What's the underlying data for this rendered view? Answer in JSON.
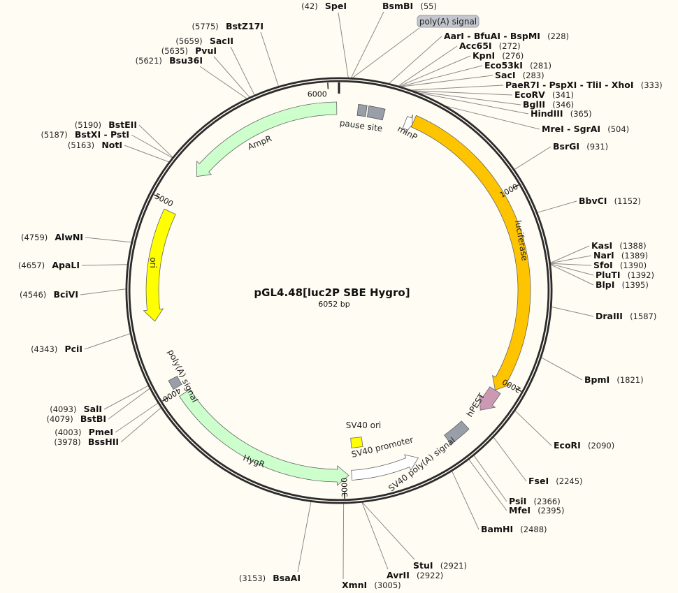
{
  "map": {
    "title": "pGL4.48[luc2P SBE Hygro]",
    "length_label": "6052 bp",
    "length_bp": 6052,
    "ticks": [
      {
        "pos": 1000,
        "label": "1000"
      },
      {
        "pos": 2000,
        "label": "2000"
      },
      {
        "pos": 3000,
        "label": "3000"
      },
      {
        "pos": 4000,
        "label": "4000"
      },
      {
        "pos": 5000,
        "label": "5000"
      },
      {
        "pos": 6000,
        "label": "6000"
      }
    ],
    "colors": {
      "background": "#fffcf3",
      "backbone": "#2b2b2b",
      "luciferase": "#ffc400",
      "ampr": "#ccffcc",
      "hygr": "#ccffcc",
      "ori": "#ffff00",
      "hpest": "#cc99b2",
      "gray_feature": "#999fa8",
      "promoter": "#ffffff"
    }
  },
  "features": [
    {
      "name": "luciferase",
      "start": 400,
      "end": 2060,
      "direction": "forward",
      "color": "#ffc400"
    },
    {
      "name": "hPEST",
      "start": 2060,
      "end": 2190,
      "direction": "forward",
      "color": "#cc99b2"
    },
    {
      "name": "SV40 poly(A) signal",
      "start": 2300,
      "end": 2420,
      "direction": "none",
      "color": "#999fa8"
    },
    {
      "name": "SV40 promoter",
      "start": 2600,
      "end": 2960,
      "direction": "reverse",
      "color": "#ffffff"
    },
    {
      "name": "SV40 ori",
      "start": 2880,
      "end": 2950,
      "direction": "none",
      "color": "#ffff00"
    },
    {
      "name": "HygR",
      "start": 2975,
      "end": 3975,
      "direction": "reverse",
      "color": "#ccffcc"
    },
    {
      "name": "poly(A) signal",
      "start": 4020,
      "end": 4070,
      "direction": "none",
      "color": "#999fa8"
    },
    {
      "name": "ori",
      "start": 4380,
      "end": 4960,
      "direction": "reverse",
      "color": "#ffff00"
    },
    {
      "name": "AmpR",
      "start": 5190,
      "end": 6040,
      "direction": "reverse",
      "color": "#ccffcc"
    },
    {
      "name": "pause site",
      "start": 100,
      "end": 250,
      "direction": "none",
      "color": "#999fa8"
    },
    {
      "name": "minP",
      "start": 360,
      "end": 400,
      "direction": "forward",
      "color": "#ffffff"
    },
    {
      "name": "poly(A) signal",
      "start": 60,
      "end": 70,
      "direction": "label",
      "color": "#999fa8"
    }
  ],
  "sites": [
    {
      "name": "SpeI",
      "pos": 42
    },
    {
      "name": "BsmBI",
      "pos": 55
    },
    {
      "name": "AarI - BfuAI - BspMI",
      "pos": 228
    },
    {
      "name": "Acc65I",
      "pos": 272
    },
    {
      "name": "KpnI",
      "pos": 276
    },
    {
      "name": "Eco53kI",
      "pos": 281
    },
    {
      "name": "SacI",
      "pos": 283
    },
    {
      "name": "PaeR7I - PspXI - TliI - XhoI",
      "pos": 333
    },
    {
      "name": "EcoRV",
      "pos": 341
    },
    {
      "name": "BglII",
      "pos": 346
    },
    {
      "name": "HindIII",
      "pos": 365
    },
    {
      "name": "MreI - SgrAI",
      "pos": 504
    },
    {
      "name": "BsrGI",
      "pos": 931
    },
    {
      "name": "BbvCI",
      "pos": 1152
    },
    {
      "name": "KasI",
      "pos": 1388
    },
    {
      "name": "NarI",
      "pos": 1389
    },
    {
      "name": "SfoI",
      "pos": 1390
    },
    {
      "name": "PluTI",
      "pos": 1392
    },
    {
      "name": "BlpI",
      "pos": 1395
    },
    {
      "name": "DraIII",
      "pos": 1587
    },
    {
      "name": "BpmI",
      "pos": 1821
    },
    {
      "name": "EcoRI",
      "pos": 2090
    },
    {
      "name": "FseI",
      "pos": 2245
    },
    {
      "name": "PsiI",
      "pos": 2366
    },
    {
      "name": "MfeI",
      "pos": 2395
    },
    {
      "name": "BamHI",
      "pos": 2488
    },
    {
      "name": "StuI",
      "pos": 2921
    },
    {
      "name": "AvrII",
      "pos": 2922
    },
    {
      "name": "XmnI",
      "pos": 3005
    },
    {
      "name": "BsaAI",
      "pos": 3153
    },
    {
      "name": "BssHII",
      "pos": 3978
    },
    {
      "name": "PmeI",
      "pos": 4003
    },
    {
      "name": "BstBI",
      "pos": 4079
    },
    {
      "name": "SalI",
      "pos": 4093
    },
    {
      "name": "PciI",
      "pos": 4343
    },
    {
      "name": "BciVI",
      "pos": 4546
    },
    {
      "name": "ApaLI",
      "pos": 4657
    },
    {
      "name": "AlwNI",
      "pos": 4759
    },
    {
      "name": "NotI",
      "pos": 5163
    },
    {
      "name": "BstXI - PstI",
      "pos": 5187
    },
    {
      "name": "BstEII",
      "pos": 5190
    },
    {
      "name": "Bsu36I",
      "pos": 5621
    },
    {
      "name": "PvuI",
      "pos": 5635
    },
    {
      "name": "SacII",
      "pos": 5659
    },
    {
      "name": "BstZ17I",
      "pos": 5775
    }
  ]
}
